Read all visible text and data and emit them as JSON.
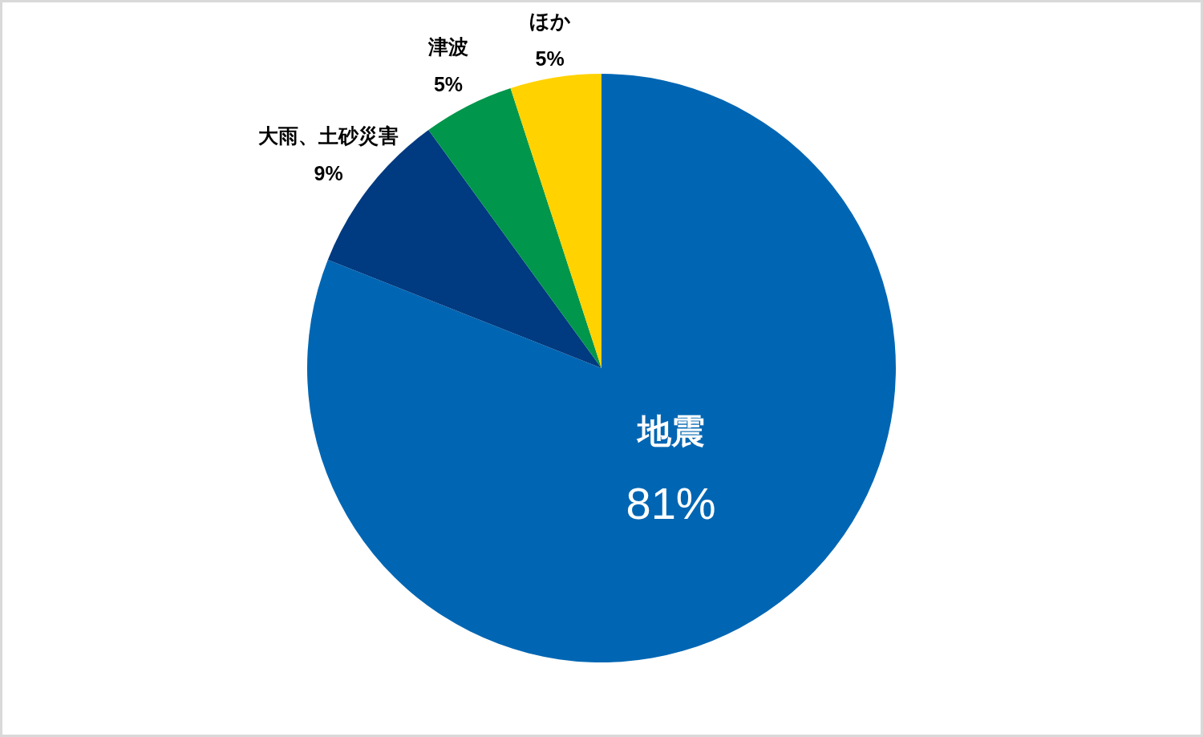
{
  "chart_data": {
    "type": "pie",
    "categories": [
      "地震",
      "大雨、土砂災害",
      "津波",
      "ほか"
    ],
    "values": [
      81,
      9,
      5,
      5
    ],
    "colors": [
      "#0066b3",
      "#003a80",
      "#00964b",
      "#ffd200"
    ],
    "value_labels": [
      "81%",
      "9%",
      "5%",
      "5%"
    ]
  }
}
